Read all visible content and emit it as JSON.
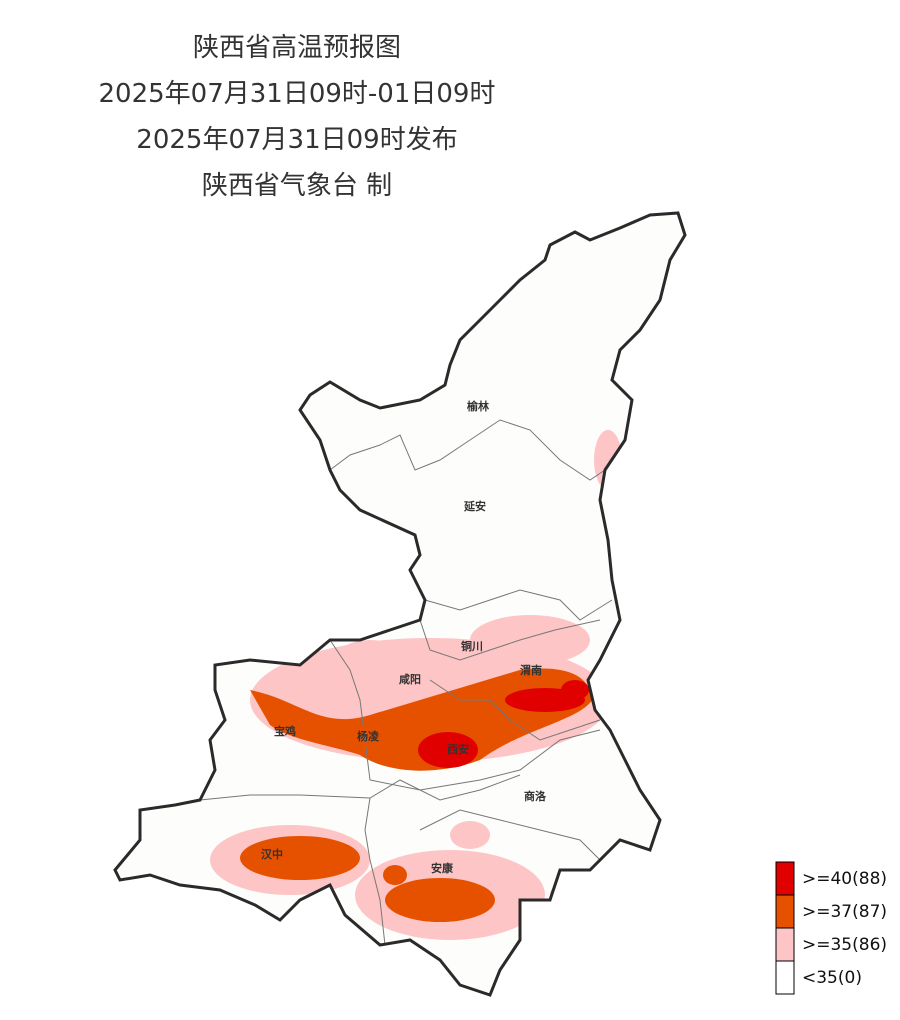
{
  "header": {
    "title": "陕西省高温预报图",
    "period": "2025年07月31日09时-01日09时",
    "issued": "2025年07月31日09时发布",
    "issuer": "陕西省气象台 制"
  },
  "cities": [
    "榆林",
    "延安",
    "铜川",
    "咸阳",
    "渭南",
    "宝鸡",
    "杨凌",
    "西安",
    "商洛",
    "汉中",
    "安康"
  ],
  "legend": [
    {
      "label": ">=40(88)",
      "color": "#e00000"
    },
    {
      "label": ">=37(87)",
      "color": "#e65100"
    },
    {
      "label": ">=35(86)",
      "color": "#fdc5c5"
    },
    {
      "label": "<35(0)",
      "color": "#ffffff"
    }
  ]
}
